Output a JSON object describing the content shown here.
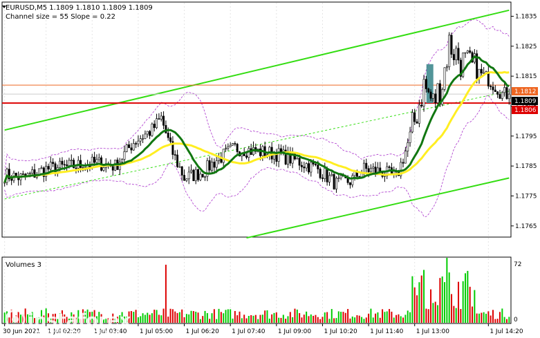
{
  "header": {
    "symbol_line": "EURUSD,M5  1.1809 1.1810 1.1809 1.1809",
    "indicator_line": "Channel size = 55 Slope = 0.22"
  },
  "volumes_panel": {
    "title": "Volumes 3",
    "y_ticks": [
      "72",
      "0"
    ]
  },
  "price_labels": {
    "resistance": "1.1812",
    "current": "1.1809",
    "support": "1.1806"
  },
  "watermark": {
    "brand": "instaforex",
    "tagline": "Instant Forex Trading"
  },
  "colors": {
    "background": "#ffffff",
    "candle": "#000000",
    "channel": "#33dd11",
    "ma_fast": "#117711",
    "ma_slow": "#ffee22",
    "bands": "#aa33cc",
    "resistance_line": "#ee6622",
    "support_line": "#dd0000",
    "highlight_box": "#3f8a8e",
    "volume_bar": "#00cc00",
    "volume_bar_down": "#dd0000"
  },
  "chart_data": {
    "type": "candlestick",
    "symbol": "EURUSD",
    "timeframe": "M5",
    "ohlc_header": [
      1.1809,
      1.181,
      1.1809,
      1.1809
    ],
    "ylim": [
      1.17615,
      1.18395
    ],
    "y_ticks": [
      "1.1835",
      "1.1825",
      "1.1815",
      "1.1805",
      "1.1795",
      "1.1785",
      "1.1775",
      "1.1765"
    ],
    "x_ticks": [
      "30 Jun 2021",
      "1 Jul 02:20",
      "1 Jul 03:40",
      "1 Jul 05:00",
      "1 Jul 06:20",
      "1 Jul 07:40",
      "1 Jul 09:00",
      "1 Jul 10:20",
      "1 Jul 11:40",
      "1 Jul 13:00",
      "1 Jul 14:20"
    ],
    "series": [
      {
        "name": "Channel upper",
        "values": [
          [
            0,
            1.1797
          ],
          [
            219,
            1.1837
          ]
        ]
      },
      {
        "name": "Channel lower",
        "values": [
          [
            105,
            1.1761
          ],
          [
            219,
            1.1781
          ]
        ]
      },
      {
        "name": "Channel middle",
        "values": [
          [
            0,
            1.1774
          ],
          [
            219,
            1.181
          ]
        ]
      }
    ],
    "levels": [
      {
        "price": 1.1812,
        "role": "resistance"
      },
      {
        "price": 1.1806,
        "role": "support"
      }
    ],
    "volume_max": 72
  }
}
